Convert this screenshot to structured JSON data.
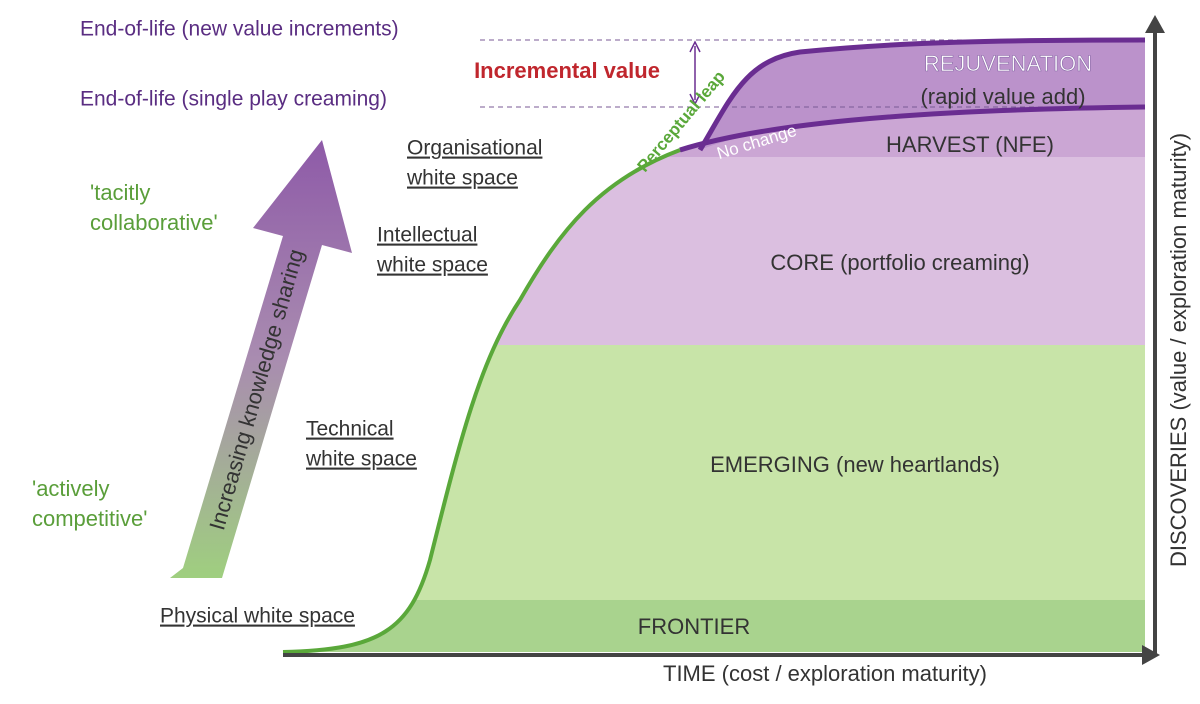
{
  "end_of_life": {
    "new_value": "End-of-life (new value increments)",
    "single_play": "End-of-life (single play creaming)"
  },
  "annotations": {
    "incremental_value": "Incremental value",
    "perceptual_leap": "Perceptual leap",
    "no_change": "No change"
  },
  "zones": {
    "rejuvenation": "REJUVENATION",
    "rejuvenation_note": "(rapid value add)",
    "harvest": "HARVEST (NFE)",
    "core": "CORE (portfolio creaming)",
    "emerging": "EMERGING (new heartlands)",
    "frontier": "FRONTIER"
  },
  "axes": {
    "x_label": "TIME (cost / exploration maturity)",
    "y_label": "DISCOVERIES (value / exploration maturity)"
  },
  "white_spaces": {
    "organisational": [
      "Organisational",
      "white space"
    ],
    "intellectual": [
      "Intellectual",
      "white space"
    ],
    "technical": [
      "Technical",
      "white space"
    ],
    "physical": "Physical white space"
  },
  "stances": {
    "collaborative": [
      "'tacitly",
      "collaborative'"
    ],
    "competitive": [
      "'actively",
      "competitive'"
    ]
  },
  "arrow_label": "Increasing knowledge sharing"
}
